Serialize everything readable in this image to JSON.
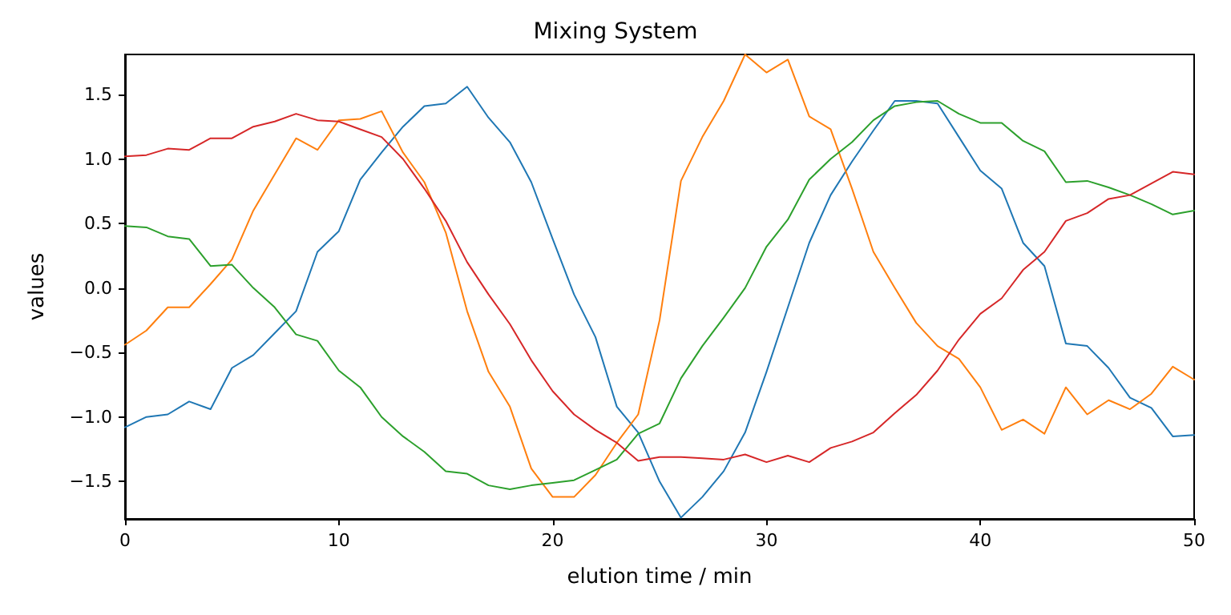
{
  "chart_data": {
    "type": "line",
    "title": "Mixing System",
    "xlabel": "elution time / min",
    "ylabel": "values",
    "x": [
      0,
      1,
      2,
      3,
      4,
      5,
      6,
      7,
      8,
      9,
      10,
      11,
      12,
      13,
      14,
      15,
      16,
      17,
      18,
      19,
      20,
      21,
      22,
      23,
      24,
      25,
      26,
      27,
      28,
      29,
      30,
      31,
      32,
      33,
      34,
      35,
      36,
      37,
      38,
      39,
      40,
      41,
      42,
      43,
      44,
      45,
      46,
      47,
      48,
      49,
      50
    ],
    "series": [
      {
        "color": "#1f77b4",
        "values": [
          -1.08,
          -1.0,
          -0.98,
          -0.88,
          -0.94,
          -0.62,
          -0.52,
          -0.35,
          -0.18,
          0.28,
          0.44,
          0.84,
          1.05,
          1.25,
          1.41,
          1.43,
          1.56,
          1.32,
          1.13,
          0.82,
          0.38,
          -0.05,
          -0.38,
          -0.92,
          -1.12,
          -1.5,
          -1.78,
          -1.62,
          -1.42,
          -1.12,
          -0.65,
          -0.15,
          0.35,
          0.72,
          0.98,
          1.22,
          1.45,
          1.45,
          1.43,
          1.17,
          0.91,
          0.77,
          0.35,
          0.17,
          -0.43,
          -0.45,
          -0.62,
          -0.85,
          -0.93,
          -1.15,
          -1.14
        ]
      },
      {
        "color": "#ff7f0e",
        "values": [
          -0.44,
          -0.33,
          -0.15,
          -0.15,
          0.03,
          0.22,
          0.6,
          0.88,
          1.16,
          1.07,
          1.3,
          1.31,
          1.37,
          1.05,
          0.82,
          0.43,
          -0.18,
          -0.65,
          -0.92,
          -1.4,
          -1.62,
          -1.62,
          -1.45,
          -1.2,
          -0.98,
          -0.25,
          0.83,
          1.17,
          1.45,
          1.81,
          1.67,
          1.77,
          1.33,
          1.23,
          0.77,
          0.28,
          0.0,
          -0.27,
          -0.45,
          -0.55,
          -0.77,
          -1.1,
          -1.02,
          -1.13,
          -0.77,
          -0.98,
          -0.87,
          -0.94,
          -0.82,
          -0.61,
          -0.71
        ]
      },
      {
        "color": "#2ca02c",
        "values": [
          0.48,
          0.47,
          0.4,
          0.38,
          0.17,
          0.18,
          0.0,
          -0.15,
          -0.36,
          -0.41,
          -0.64,
          -0.77,
          -1.0,
          -1.15,
          -1.27,
          -1.42,
          -1.44,
          -1.53,
          -1.56,
          -1.53,
          -1.51,
          -1.49,
          -1.41,
          -1.33,
          -1.13,
          -1.05,
          -0.7,
          -0.45,
          -0.23,
          0.0,
          0.32,
          0.53,
          0.84,
          1.0,
          1.13,
          1.3,
          1.41,
          1.44,
          1.45,
          1.35,
          1.28,
          1.28,
          1.14,
          1.06,
          0.82,
          0.83,
          0.78,
          0.72,
          0.65,
          0.57,
          0.6
        ]
      },
      {
        "color": "#d62728",
        "values": [
          1.02,
          1.03,
          1.08,
          1.07,
          1.16,
          1.16,
          1.25,
          1.29,
          1.35,
          1.3,
          1.29,
          1.23,
          1.17,
          1.0,
          0.77,
          0.52,
          0.2,
          -0.05,
          -0.28,
          -0.56,
          -0.8,
          -0.98,
          -1.1,
          -1.2,
          -1.34,
          -1.31,
          -1.31,
          -1.32,
          -1.33,
          -1.29,
          -1.35,
          -1.3,
          -1.35,
          -1.24,
          -1.19,
          -1.12,
          -0.97,
          -0.83,
          -0.64,
          -0.4,
          -0.2,
          -0.08,
          0.14,
          0.28,
          0.52,
          0.58,
          0.69,
          0.72,
          0.81,
          0.9,
          0.88
        ]
      }
    ],
    "xlim": [
      0,
      50
    ],
    "xticks": [
      0,
      10,
      20,
      30,
      40,
      50
    ],
    "ylim": [
      -1.79,
      1.81
    ],
    "yticks": [
      {
        "value": -1.5,
        "label": "−1.5"
      },
      {
        "value": -1.0,
        "label": "−1.0"
      },
      {
        "value": -0.5,
        "label": "−0.5"
      },
      {
        "value": 0,
        "label": "0.0"
      },
      {
        "value": 0.5,
        "label": "0.5"
      },
      {
        "value": 1.0,
        "label": "1.0"
      },
      {
        "value": 1.5,
        "label": "1.5"
      }
    ],
    "grid": false,
    "marker": "none",
    "line_style": "solid"
  }
}
